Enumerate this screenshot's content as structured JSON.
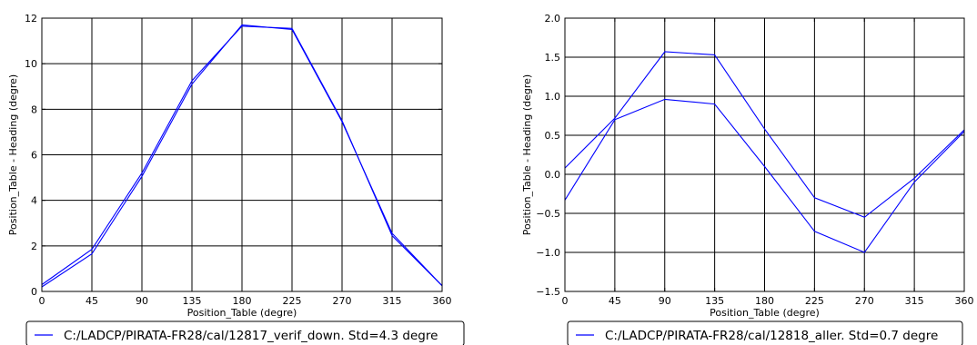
{
  "chart_data": [
    {
      "type": "line",
      "xlabel": "Position_Table (degre)",
      "ylabel": "Position_Table - Heading (degre)",
      "xlim": [
        0,
        360
      ],
      "ylim": [
        0,
        12
      ],
      "xticks": [
        0,
        45,
        90,
        135,
        180,
        225,
        270,
        315,
        360
      ],
      "yticks": [
        0,
        2,
        4,
        6,
        8,
        10,
        12
      ],
      "ytick_labels": [
        "0",
        "2",
        "4",
        "6",
        "8",
        "10",
        "12"
      ],
      "grid": true,
      "color": "#0000ff",
      "legend": {
        "placement": "below",
        "label": "C:/LADCP/PIRATA-FR28/cal/12817_verif_down. Std=4.3 degre"
      },
      "x": [
        0,
        45,
        90,
        135,
        180,
        225,
        270,
        315,
        360
      ],
      "series": [
        {
          "values": [
            0.3,
            1.85,
            5.2,
            9.25,
            11.65,
            11.55,
            7.5,
            2.45,
            0.25
          ]
        },
        {
          "values": [
            0.2,
            1.65,
            5.05,
            9.1,
            11.7,
            11.5,
            7.45,
            2.55,
            0.25
          ]
        }
      ]
    },
    {
      "type": "line",
      "xlabel": "Position_Table (degre)",
      "ylabel": "Position_Table - Heading (degre)",
      "xlim": [
        0,
        360
      ],
      "ylim": [
        -1.5,
        2.0
      ],
      "xticks": [
        0,
        45,
        90,
        135,
        180,
        225,
        270,
        315,
        360
      ],
      "yticks": [
        -1.5,
        -1.0,
        -0.5,
        0.0,
        0.5,
        1.0,
        1.5,
        2.0
      ],
      "ytick_labels": [
        "−1.5",
        "−1.0",
        "−0.5",
        "0.0",
        "0.5",
        "1.0",
        "1.5",
        "2.0"
      ],
      "grid": true,
      "color": "#0000ff",
      "legend": {
        "placement": "below",
        "label": "C:/LADCP/PIRATA-FR28/cal/12818_aller. Std=0.7 degre"
      },
      "x": [
        0,
        45,
        90,
        135,
        180,
        225,
        270,
        315,
        360
      ],
      "series": [
        {
          "values": [
            0.08,
            0.72,
            1.57,
            1.53,
            0.58,
            -0.3,
            -0.55,
            -0.05,
            0.57
          ]
        },
        {
          "values": [
            -0.33,
            0.7,
            0.96,
            0.9,
            0.1,
            -0.73,
            -1.0,
            -0.1,
            0.55
          ]
        }
      ]
    }
  ]
}
